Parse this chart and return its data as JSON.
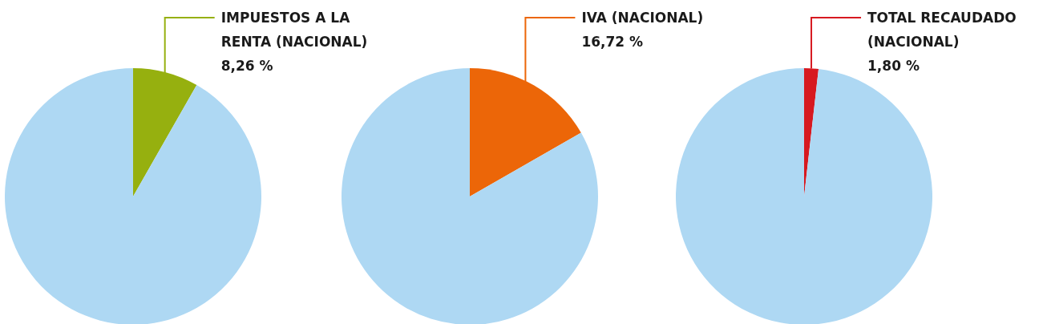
{
  "chart_data": [
    {
      "type": "pie",
      "categories": [
        "IMPUESTOS A LA RENTA (NACIONAL)",
        null
      ],
      "values": [
        8.26,
        91.74
      ],
      "colors": [
        "#96b00f",
        "#aed8f3"
      ],
      "value_labels": [
        "8,26 %",
        null
      ]
    },
    {
      "type": "pie",
      "categories": [
        "IVA (NACIONAL)",
        null
      ],
      "values": [
        16.72,
        83.28
      ],
      "colors": [
        "#ec6608",
        "#aed8f3"
      ],
      "value_labels": [
        "16,72 %",
        null
      ]
    },
    {
      "type": "pie",
      "categories": [
        "TOTAL RECAUDADO (NACIONAL)",
        null
      ],
      "values": [
        1.8,
        98.2
      ],
      "colors": [
        "#d71920",
        "#aed8f3"
      ],
      "value_labels": [
        "1,80 %",
        null
      ]
    }
  ]
}
